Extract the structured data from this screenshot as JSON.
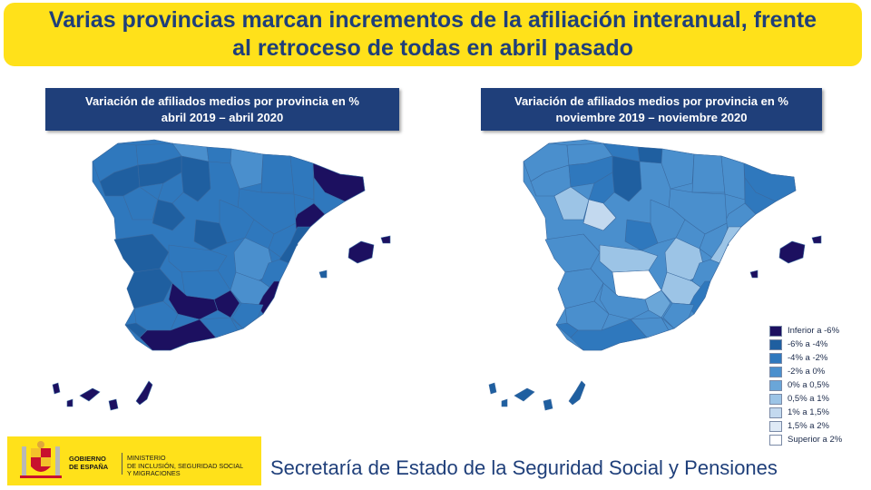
{
  "headline": {
    "line1": "Varias provincias marcan incrementos de la afiliación interanual, frente",
    "line2": "al retroceso de todas en abril pasado"
  },
  "left_panel": {
    "title_line1": "Variación de afiliados medios por provincia en %",
    "title_line2": "abril 2019 – abril 2020"
  },
  "right_panel": {
    "title_line1": "Variación de afiliados medios por provincia en %",
    "title_line2": "noviembre 2019 – noviembre 2020"
  },
  "legend": [
    {
      "label": "Inferior a -6%",
      "color": "#1c1060"
    },
    {
      "label": "-6% a -4%",
      "color": "#1f5fa0"
    },
    {
      "label": "-4% a -2%",
      "color": "#2f78bd"
    },
    {
      "label": "-2% a 0%",
      "color": "#4a8fcd"
    },
    {
      "label": "0% a 0,5%",
      "color": "#6aa6d8"
    },
    {
      "label": "0,5% a 1%",
      "color": "#9cc4e6"
    },
    {
      "label": "1% a 1,5%",
      "color": "#c3d9ef"
    },
    {
      "label": "1,5% a 2%",
      "color": "#dfeaf6"
    },
    {
      "label": "Superior a 2%",
      "color": "#ffffff"
    }
  ],
  "footer": {
    "logo_line1": "GOBIERNO",
    "logo_line2": "DE ESPAÑA",
    "ministry_line1": "MINISTERIO",
    "ministry_line2": "DE INCLUSIÓN, SEGURIDAD SOCIAL",
    "ministry_line3": "Y MIGRACIONES",
    "secretariat": "Secretaría de Estado de la Seguridad Social y Pensiones"
  }
}
